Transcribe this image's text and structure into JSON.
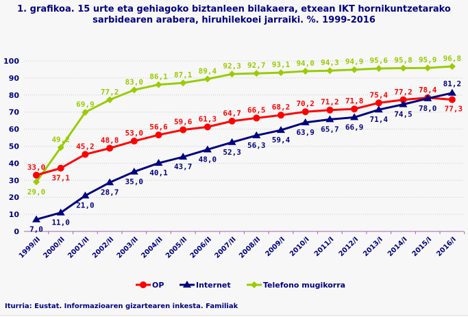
{
  "chart_data": {
    "type": "line",
    "title_line1": "1. grafikoa. 15 urte eta gehiagoko biztanleen bilakaera, etxean IKT hornikuntzetarako",
    "title_line2": "sarbidearen arabera, hiruhilekoei jarraiki. %. 1999-2016",
    "categories": [
      "1999/II",
      "2000/II",
      "2001/II",
      "2002/II",
      "2003/II",
      "2004/II",
      "2005/II",
      "2006/II",
      "2007/II",
      "2008/II",
      "2009/I",
      "2010/I",
      "2011/I",
      "2012/I",
      "2013/I",
      "2014/I",
      "2015/I",
      "2016/I"
    ],
    "ylim": [
      0,
      100
    ],
    "yticks": [
      "0",
      "10",
      "20",
      "30",
      "40",
      "50",
      "60",
      "70",
      "80",
      "90",
      "100"
    ],
    "grid": true,
    "legend_position": "bottom",
    "series": [
      {
        "name": "OP",
        "color": "#ff0000",
        "marker": "circle",
        "values": [
          33.0,
          37.1,
          45.2,
          48.8,
          53.0,
          56.6,
          59.6,
          61.3,
          64.7,
          66.5,
          68.2,
          70.2,
          71.2,
          71.8,
          75.4,
          77.2,
          78.4,
          77.3
        ],
        "labels": [
          "33,0",
          "37,1",
          "45,2",
          "48,8",
          "53,0",
          "56,6",
          "59,6",
          "61,3",
          "64,7",
          "66,5",
          "68,2",
          "70,2",
          "71,2",
          "71,8",
          "75,4",
          "77,2",
          "78,4",
          "77,3"
        ]
      },
      {
        "name": "Internet",
        "color": "#000080",
        "marker": "triangle",
        "values": [
          7.0,
          11.0,
          21.0,
          28.7,
          35.0,
          40.1,
          43.7,
          48.0,
          52.3,
          56.3,
          59.4,
          63.9,
          65.7,
          66.9,
          71.4,
          74.5,
          78.0,
          81.2
        ],
        "labels": [
          "7,0",
          "11,0",
          "21,0",
          "28,7",
          "35,0",
          "40,1",
          "43,7",
          "48,0",
          "52,3",
          "56,3",
          "59,4",
          "63,9",
          "65,7",
          "66,9",
          "71,4",
          "74,5",
          "78,0",
          "81,2"
        ]
      },
      {
        "name": "Telefono mugikorra",
        "color": "#99cc00",
        "marker": "diamond",
        "values": [
          29.0,
          49.2,
          69.9,
          77.2,
          83.0,
          86.1,
          87.1,
          89.4,
          92.3,
          92.7,
          93.1,
          94.0,
          94.3,
          94.9,
          95.6,
          95.8,
          95.9,
          96.8
        ],
        "labels": [
          "29,0",
          "49,2",
          "69,9",
          "77,2",
          "83,0",
          "86,1",
          "87,1",
          "89,4",
          "92,3",
          "92,7",
          "93,1",
          "94,0",
          "94,3",
          "94,9",
          "95,6",
          "95,8",
          "95,9",
          "96,8"
        ]
      }
    ],
    "source": "Iturria: Eustat. Informazioaren gizartearen inkesta. Familiak"
  }
}
